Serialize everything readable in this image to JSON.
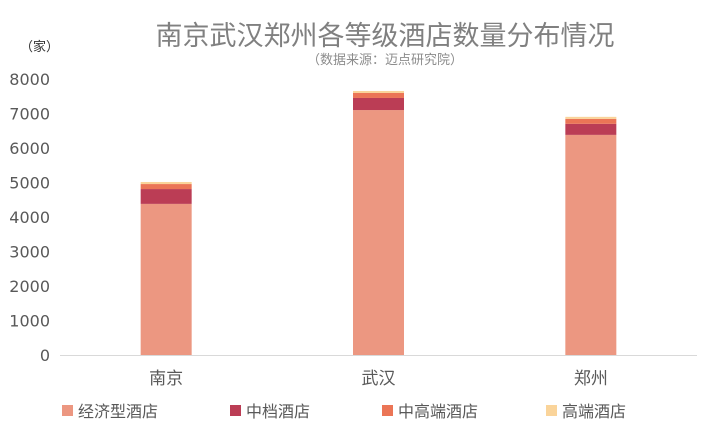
{
  "chart_data": {
    "type": "bar",
    "stacked": true,
    "title": "南京武汉郑州各等级酒店数量分布情况",
    "subtitle": "（数据来源：迈点研究院）",
    "ylabel": "（家）",
    "categories": [
      "南京",
      "武汉",
      "郑州"
    ],
    "ylim": [
      0,
      8000
    ],
    "yticks": [
      0,
      1000,
      2000,
      3000,
      4000,
      5000,
      6000,
      7000,
      8000
    ],
    "grid": false,
    "legend_position": "bottom",
    "series": [
      {
        "name": "经济型酒店",
        "color": "#EC9781",
        "values": [
          4380,
          7100,
          6380
        ]
      },
      {
        "name": "中档酒店",
        "color": "#BB3D55",
        "values": [
          430,
          350,
          320
        ]
      },
      {
        "name": "中高端酒店",
        "color": "#EB7556",
        "values": [
          145,
          145,
          145
        ]
      },
      {
        "name": "高端酒店",
        "color": "#FAD49A",
        "values": [
          60,
          58,
          58
        ]
      }
    ]
  }
}
